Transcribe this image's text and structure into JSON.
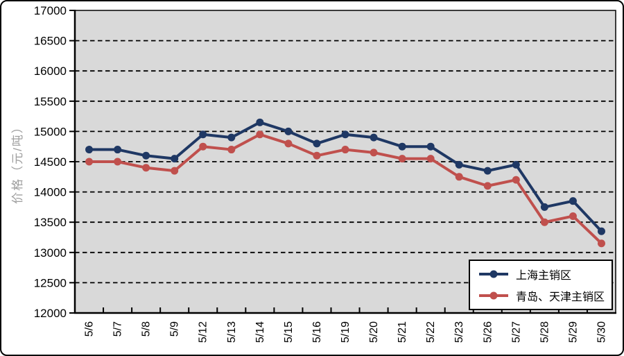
{
  "chart_data": {
    "type": "line",
    "title": "",
    "ylabel": "价格（元/吨）",
    "xlabel": "",
    "ylim": [
      12000,
      17000
    ],
    "y_tick_step": 500,
    "y_ticks": [
      12000,
      12500,
      13000,
      13500,
      14000,
      14500,
      15000,
      15500,
      16000,
      16500,
      17000
    ],
    "grid": "horizontal-dashed",
    "plot_bg_color": "#D9D9D9",
    "gridline_color": "#000000",
    "legend_position": "bottom-right",
    "categories": [
      "5/6",
      "5/7",
      "5/8",
      "5/9",
      "5/12",
      "5/13",
      "5/14",
      "5/15",
      "5/16",
      "5/19",
      "5/20",
      "5/21",
      "5/22",
      "5/23",
      "5/26",
      "5/27",
      "5/28",
      "5/29",
      "5/30"
    ],
    "series": [
      {
        "name": "上海主销区",
        "color": "#1F3864",
        "values": [
          14700,
          14700,
          14600,
          14550,
          14950,
          14900,
          15150,
          15000,
          14800,
          14950,
          14900,
          14750,
          14750,
          14450,
          14350,
          14450,
          13750,
          13850,
          13350
        ]
      },
      {
        "name": "青岛、天津主销区",
        "color": "#C0504D",
        "values": [
          14500,
          14500,
          14400,
          14350,
          14750,
          14700,
          14950,
          14800,
          14600,
          14700,
          14650,
          14550,
          14550,
          14250,
          14100,
          14200,
          13500,
          13600,
          13150
        ]
      }
    ]
  }
}
